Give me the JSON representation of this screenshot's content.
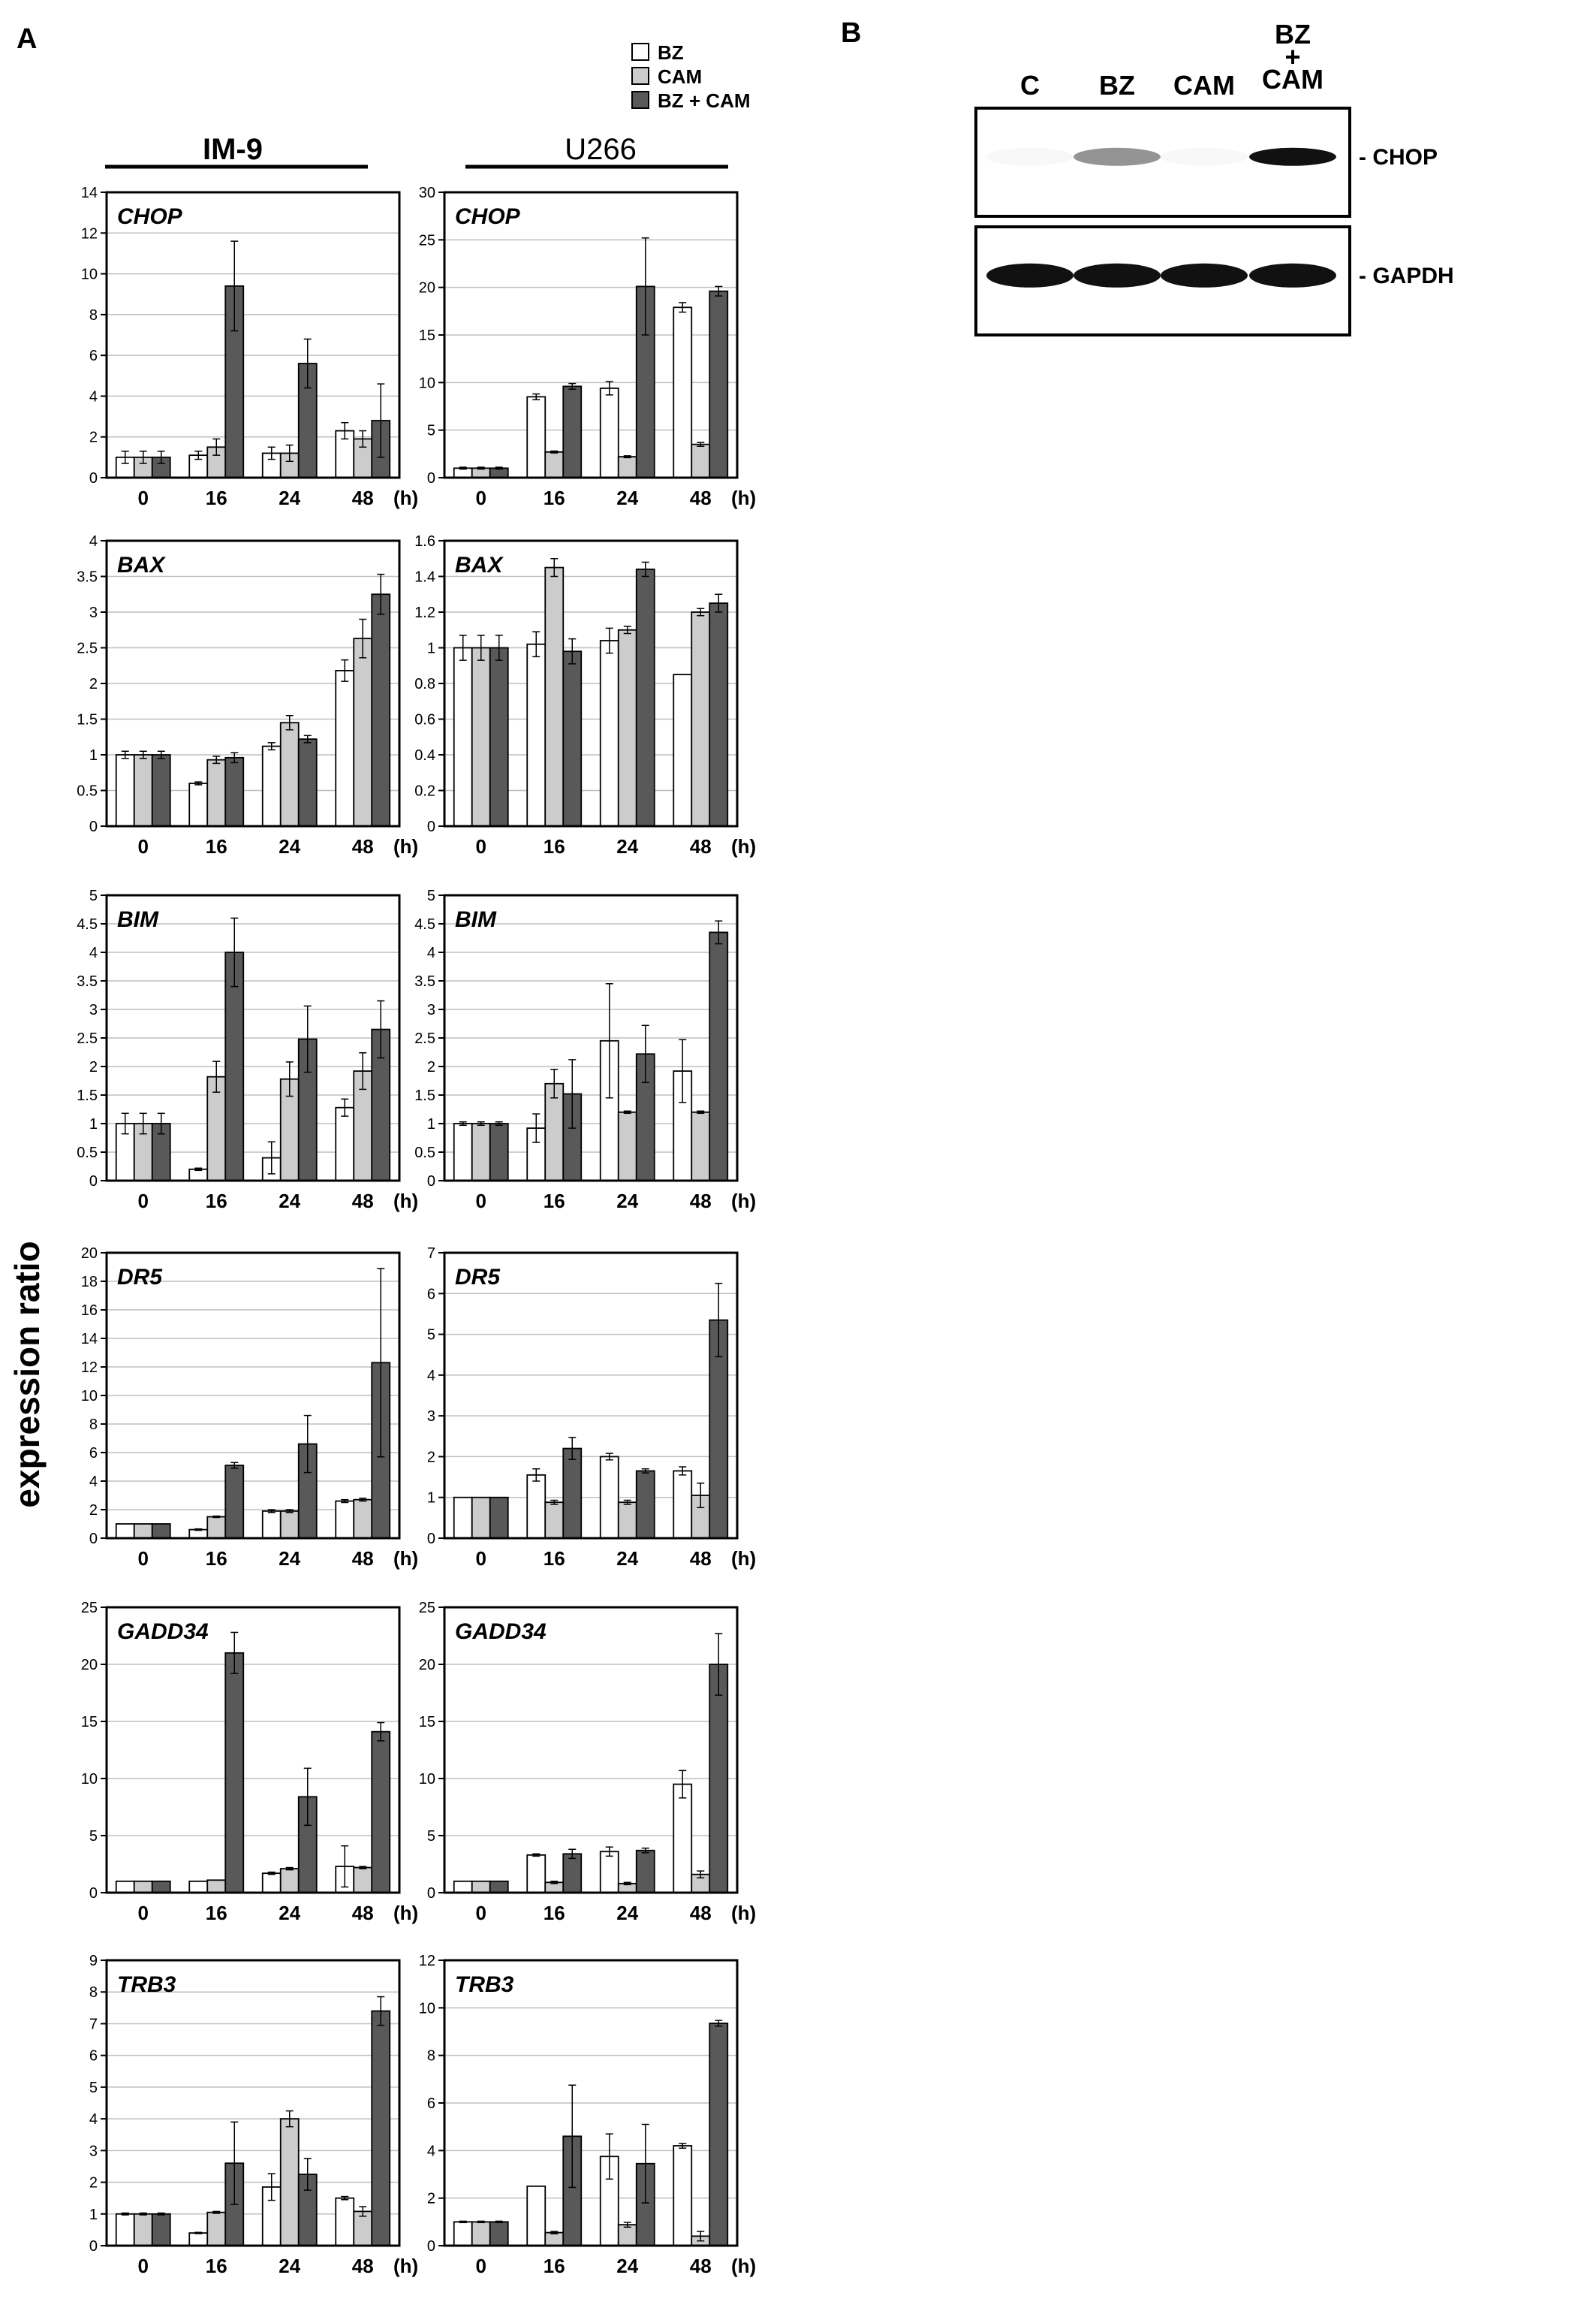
{
  "panel_labels": {
    "a": "A",
    "b": "B"
  },
  "legend": {
    "entries": [
      {
        "label": "BZ",
        "color": "#ffffff"
      },
      {
        "label": "CAM",
        "color": "#cccccc"
      },
      {
        "label": "BZ + CAM",
        "color": "#595959"
      }
    ]
  },
  "cell_lines": {
    "left": "IM-9",
    "right": "U266"
  },
  "ylabel": "expression ratio",
  "x_unit": "(h)",
  "colors": {
    "bz": "#ffffff",
    "cam": "#cccccc",
    "combo": "#595959",
    "grid": "#bfbfbf"
  },
  "chart_data": [
    {
      "type": "bar",
      "cell_line": "IM-9",
      "gene": "CHOP",
      "categories": [
        "0",
        "16",
        "24",
        "48"
      ],
      "ylim": [
        0,
        14
      ],
      "yticks": [
        0,
        2,
        4,
        6,
        8,
        10,
        12,
        14
      ],
      "series": [
        {
          "name": "BZ",
          "values": [
            1,
            1.1,
            1.2,
            2.3
          ],
          "errors": [
            0.3,
            0.2,
            0.3,
            0.4
          ]
        },
        {
          "name": "CAM",
          "values": [
            1,
            1.5,
            1.2,
            1.9
          ],
          "errors": [
            0.3,
            0.4,
            0.4,
            0.4
          ]
        },
        {
          "name": "BZ + CAM",
          "values": [
            1,
            9.4,
            5.6,
            2.8
          ],
          "errors": [
            0.3,
            2.2,
            1.2,
            1.8
          ]
        }
      ]
    },
    {
      "type": "bar",
      "cell_line": "U266",
      "gene": "CHOP",
      "categories": [
        "0",
        "16",
        "24",
        "48"
      ],
      "ylim": [
        0,
        30
      ],
      "yticks": [
        0,
        5,
        10,
        15,
        20,
        25,
        30
      ],
      "series": [
        {
          "name": "BZ",
          "values": [
            1,
            8.5,
            9.4,
            17.9
          ],
          "errors": [
            0.1,
            0.3,
            0.7,
            0.5
          ]
        },
        {
          "name": "CAM",
          "values": [
            1,
            2.7,
            2.2,
            3.5
          ],
          "errors": [
            0.1,
            0.1,
            0.1,
            0.2
          ]
        },
        {
          "name": "BZ + CAM",
          "values": [
            1,
            9.6,
            20.1,
            19.6
          ],
          "errors": [
            0.1,
            0.3,
            5.1,
            0.5
          ]
        }
      ]
    },
    {
      "type": "bar",
      "cell_line": "IM-9",
      "gene": "BAX",
      "categories": [
        "0",
        "16",
        "24",
        "48"
      ],
      "ylim": [
        0,
        4
      ],
      "yticks": [
        0,
        0.5,
        1,
        1.5,
        2,
        2.5,
        3,
        3.5,
        4
      ],
      "series": [
        {
          "name": "BZ",
          "values": [
            1,
            0.6,
            1.12,
            2.18
          ],
          "errors": [
            0.05,
            0.02,
            0.05,
            0.15
          ]
        },
        {
          "name": "CAM",
          "values": [
            1,
            0.93,
            1.45,
            2.63
          ],
          "errors": [
            0.05,
            0.05,
            0.1,
            0.27
          ]
        },
        {
          "name": "BZ + CAM",
          "values": [
            1,
            0.96,
            1.22,
            3.25
          ],
          "errors": [
            0.05,
            0.07,
            0.05,
            0.28
          ]
        }
      ]
    },
    {
      "type": "bar",
      "cell_line": "U266",
      "gene": "BAX",
      "categories": [
        "0",
        "16",
        "24",
        "48"
      ],
      "ylim": [
        0,
        1.6
      ],
      "yticks": [
        0,
        0.2,
        0.4,
        0.6,
        0.8,
        1,
        1.2,
        1.4,
        1.6
      ],
      "series": [
        {
          "name": "BZ",
          "values": [
            1,
            1.02,
            1.04,
            0.85
          ],
          "errors": [
            0.07,
            0.07,
            0.07,
            0
          ]
        },
        {
          "name": "CAM",
          "values": [
            1,
            1.45,
            1.1,
            1.2
          ],
          "errors": [
            0.07,
            0.05,
            0.02,
            0.02
          ]
        },
        {
          "name": "BZ + CAM",
          "values": [
            1,
            0.98,
            1.44,
            1.25
          ],
          "errors": [
            0.07,
            0.07,
            0.04,
            0.05
          ]
        }
      ]
    },
    {
      "type": "bar",
      "cell_line": "IM-9",
      "gene": "BIM",
      "categories": [
        "0",
        "16",
        "24",
        "48"
      ],
      "ylim": [
        0,
        5
      ],
      "yticks": [
        0,
        0.5,
        1,
        1.5,
        2,
        2.5,
        3,
        3.5,
        4,
        4.5,
        5
      ],
      "series": [
        {
          "name": "BZ",
          "values": [
            1,
            0.2,
            0.4,
            1.28
          ],
          "errors": [
            0.18,
            0.02,
            0.28,
            0.15
          ]
        },
        {
          "name": "CAM",
          "values": [
            1,
            1.82,
            1.78,
            1.92
          ],
          "errors": [
            0.18,
            0.27,
            0.3,
            0.32
          ]
        },
        {
          "name": "BZ + CAM",
          "values": [
            1,
            4,
            2.48,
            2.65
          ],
          "errors": [
            0.18,
            0.6,
            0.58,
            0.5
          ]
        }
      ]
    },
    {
      "type": "bar",
      "cell_line": "U266",
      "gene": "BIM",
      "categories": [
        "0",
        "16",
        "24",
        "48"
      ],
      "ylim": [
        0,
        5
      ],
      "yticks": [
        0,
        0.5,
        1,
        1.5,
        2,
        2.5,
        3,
        3.5,
        4,
        4.5,
        5
      ],
      "series": [
        {
          "name": "BZ",
          "values": [
            1,
            0.92,
            2.45,
            1.92
          ],
          "errors": [
            0.03,
            0.25,
            1,
            0.55
          ]
        },
        {
          "name": "CAM",
          "values": [
            1,
            1.7,
            1.2,
            1.2
          ],
          "errors": [
            0.03,
            0.25,
            0.02,
            0.02
          ]
        },
        {
          "name": "BZ + CAM",
          "values": [
            1,
            1.52,
            2.22,
            4.35
          ],
          "errors": [
            0.03,
            0.6,
            0.5,
            0.2
          ]
        }
      ]
    },
    {
      "type": "bar",
      "cell_line": "IM-9",
      "gene": "DR5",
      "categories": [
        "0",
        "16",
        "24",
        "48"
      ],
      "ylim": [
        0,
        20
      ],
      "yticks": [
        0,
        2,
        4,
        6,
        8,
        10,
        12,
        14,
        16,
        18,
        20
      ],
      "series": [
        {
          "name": "BZ",
          "values": [
            1,
            0.6,
            1.9,
            2.6
          ],
          "errors": [
            0,
            0.05,
            0.1,
            0.1
          ]
        },
        {
          "name": "CAM",
          "values": [
            1,
            1.5,
            1.9,
            2.7
          ],
          "errors": [
            0,
            0.05,
            0.1,
            0.1
          ]
        },
        {
          "name": "BZ + CAM",
          "values": [
            1,
            5.1,
            6.6,
            12.3
          ],
          "errors": [
            0,
            0.2,
            2,
            6.6
          ]
        }
      ]
    },
    {
      "type": "bar",
      "cell_line": "U266",
      "gene": "DR5",
      "categories": [
        "0",
        "16",
        "24",
        "48"
      ],
      "ylim": [
        0,
        7
      ],
      "yticks": [
        0,
        1,
        2,
        3,
        4,
        5,
        6,
        7
      ],
      "series": [
        {
          "name": "BZ",
          "values": [
            1,
            1.55,
            2,
            1.65
          ],
          "errors": [
            0,
            0.15,
            0.08,
            0.1
          ]
        },
        {
          "name": "CAM",
          "values": [
            1,
            0.88,
            0.88,
            1.05
          ],
          "errors": [
            0,
            0.05,
            0.05,
            0.3
          ]
        },
        {
          "name": "BZ + CAM",
          "values": [
            1,
            2.2,
            1.65,
            5.35
          ],
          "errors": [
            0,
            0.27,
            0.05,
            0.9
          ]
        }
      ]
    },
    {
      "type": "bar",
      "cell_line": "IM-9",
      "gene": "GADD34",
      "categories": [
        "0",
        "16",
        "24",
        "48"
      ],
      "ylim": [
        0,
        25
      ],
      "yticks": [
        0,
        5,
        10,
        15,
        20,
        25
      ],
      "series": [
        {
          "name": "BZ",
          "values": [
            1,
            1,
            1.7,
            2.3
          ],
          "errors": [
            0,
            0,
            0.1,
            1.8
          ]
        },
        {
          "name": "CAM",
          "values": [
            1,
            1.1,
            2.1,
            2.2
          ],
          "errors": [
            0,
            0,
            0.1,
            0.1
          ]
        },
        {
          "name": "BZ + CAM",
          "values": [
            1,
            21,
            8.4,
            14.1
          ],
          "errors": [
            0,
            1.8,
            2.5,
            0.8
          ]
        }
      ]
    },
    {
      "type": "bar",
      "cell_line": "U266",
      "gene": "GADD34",
      "categories": [
        "0",
        "16",
        "24",
        "48"
      ],
      "ylim": [
        0,
        25
      ],
      "yticks": [
        0,
        5,
        10,
        15,
        20,
        25
      ],
      "series": [
        {
          "name": "BZ",
          "values": [
            1,
            3.3,
            3.6,
            9.5
          ],
          "errors": [
            0,
            0.1,
            0.4,
            1.2
          ]
        },
        {
          "name": "CAM",
          "values": [
            1,
            0.9,
            0.8,
            1.6
          ],
          "errors": [
            0,
            0.1,
            0.1,
            0.3
          ]
        },
        {
          "name": "BZ + CAM",
          "values": [
            1,
            3.4,
            3.7,
            20
          ],
          "errors": [
            0,
            0.4,
            0.2,
            2.7
          ]
        }
      ]
    },
    {
      "type": "bar",
      "cell_line": "IM-9",
      "gene": "TRB3",
      "categories": [
        "0",
        "16",
        "24",
        "48"
      ],
      "ylim": [
        0,
        9
      ],
      "yticks": [
        0,
        1,
        2,
        3,
        4,
        5,
        6,
        7,
        8,
        9
      ],
      "series": [
        {
          "name": "BZ",
          "values": [
            1,
            0.4,
            1.85,
            1.5
          ],
          "errors": [
            0.03,
            0.02,
            0.42,
            0.05
          ]
        },
        {
          "name": "CAM",
          "values": [
            1,
            1.05,
            4,
            1.08
          ],
          "errors": [
            0.03,
            0.03,
            0.25,
            0.15
          ]
        },
        {
          "name": "BZ + CAM",
          "values": [
            1,
            2.6,
            2.25,
            7.4
          ],
          "errors": [
            0.03,
            1.3,
            0.5,
            0.45
          ]
        }
      ]
    },
    {
      "type": "bar",
      "cell_line": "U266",
      "gene": "TRB3",
      "categories": [
        "0",
        "16",
        "24",
        "48"
      ],
      "ylim": [
        0,
        12
      ],
      "yticks": [
        0,
        2,
        4,
        6,
        8,
        10,
        12
      ],
      "series": [
        {
          "name": "BZ",
          "values": [
            1,
            2.5,
            3.75,
            4.2
          ],
          "errors": [
            0.03,
            0,
            0.95,
            0.1
          ]
        },
        {
          "name": "CAM",
          "values": [
            1,
            0.55,
            0.88,
            0.4
          ],
          "errors": [
            0.03,
            0.05,
            0.1,
            0.2
          ]
        },
        {
          "name": "BZ + CAM",
          "values": [
            1,
            4.6,
            3.45,
            9.35
          ],
          "errors": [
            0.03,
            2.15,
            1.65,
            0.12
          ]
        }
      ]
    }
  ],
  "western_blot": {
    "lanes": [
      "C",
      "BZ",
      "CAM",
      "BZ\n+\nCAM"
    ],
    "rows": [
      {
        "label": "- CHOP",
        "intensities": [
          0.03,
          0.45,
          0.03,
          1.0
        ]
      },
      {
        "label": "- GAPDH",
        "intensities": [
          1.0,
          1.0,
          1.0,
          1.0
        ]
      }
    ]
  }
}
